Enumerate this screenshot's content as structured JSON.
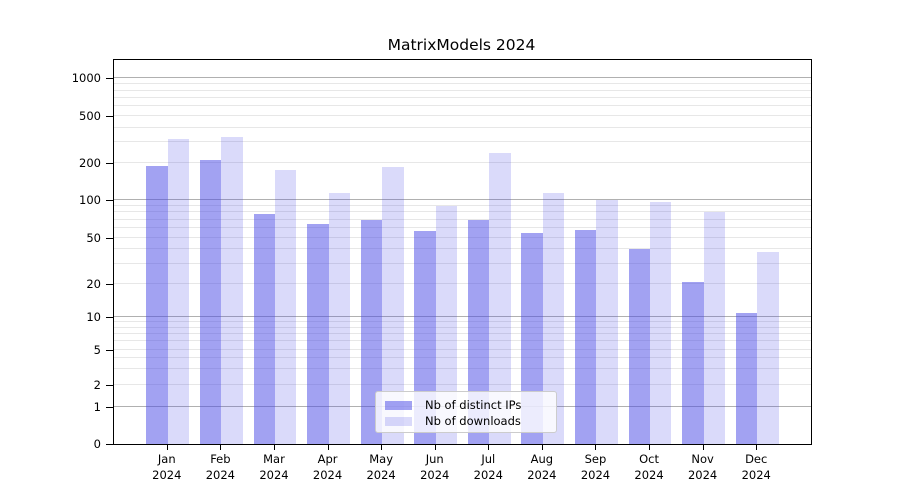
{
  "chart_data": {
    "type": "bar",
    "title": "MatrixModels 2024",
    "categories": [
      "Jan",
      "Feb",
      "Mar",
      "Apr",
      "May",
      "Jun",
      "Jul",
      "Aug",
      "Sep",
      "Oct",
      "Nov",
      "Dec"
    ],
    "year_label": "2024",
    "series": [
      {
        "name": "Nb of distinct IPs",
        "values": [
          190,
          215,
          78,
          65,
          70,
          57,
          70,
          55,
          58,
          40,
          21,
          11
        ],
        "color": "rgba(70,70,230,0.5)"
      },
      {
        "name": "Nb of downloads",
        "values": [
          320,
          330,
          175,
          115,
          185,
          90,
          245,
          115,
          100,
          97,
          80,
          38
        ],
        "color": "rgba(70,70,230,0.2)"
      }
    ],
    "xlabel": "",
    "ylabel": "",
    "yscale": "symlog",
    "ylim": [
      0,
      1350
    ],
    "yticks": [
      {
        "v": 0,
        "label": "0",
        "f": 0
      },
      {
        "v": 1,
        "label": "1",
        "f": 0.097
      },
      {
        "v": 2,
        "label": "2",
        "f": 0.154
      },
      {
        "v": 5,
        "label": "5",
        "f": 0.245
      },
      {
        "v": 10,
        "label": "10",
        "f": 0.33
      },
      {
        "v": 20,
        "label": "20",
        "f": 0.416
      },
      {
        "v": 50,
        "label": "50",
        "f": 0.537
      },
      {
        "v": 100,
        "label": "100",
        "f": 0.635
      },
      {
        "v": 200,
        "label": "200",
        "f": 0.731
      },
      {
        "v": 500,
        "label": "500",
        "f": 0.854
      },
      {
        "v": 1000,
        "label": "1000",
        "f": 0.952
      }
    ],
    "grid": {
      "major_values": [
        1,
        10,
        100,
        1000
      ],
      "minor_values": [
        2,
        3,
        4,
        5,
        6,
        7,
        8,
        9,
        20,
        30,
        40,
        50,
        60,
        70,
        80,
        90,
        200,
        300,
        400,
        500,
        600,
        700,
        800,
        900
      ],
      "major_color": "#b0b0b0",
      "minor_color": "#e7e7e7"
    },
    "legend": {
      "position": "lower center"
    }
  }
}
